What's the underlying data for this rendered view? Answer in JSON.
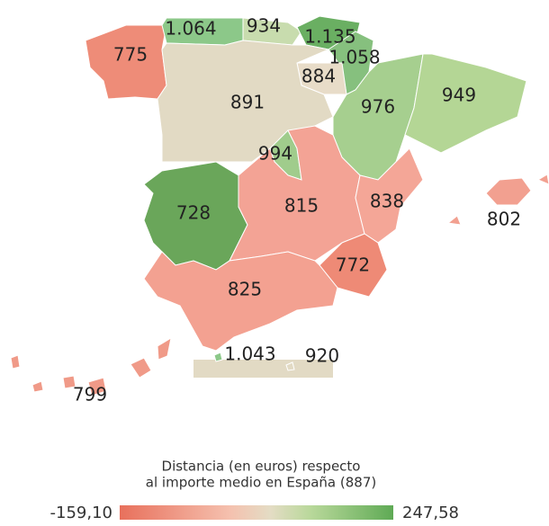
{
  "regions": [
    {
      "label": "775",
      "color": "#ee8c78"
    },
    {
      "label": "1.064",
      "color": "#8cc889"
    },
    {
      "label": "934",
      "color": "#c8dcae"
    },
    {
      "label": "1.135",
      "color": "#6aaf62"
    },
    {
      "label": "1.058",
      "color": "#86c07e"
    },
    {
      "label": "884",
      "color": "#e8dcc8"
    },
    {
      "label": "891",
      "color": "#e2dac4"
    },
    {
      "label": "976",
      "color": "#a6cf8f"
    },
    {
      "label": "949",
      "color": "#b4d695"
    },
    {
      "label": "994",
      "color": "#a0cc8c"
    },
    {
      "label": "728",
      "color": "#6aa65a"
    },
    {
      "label": "815",
      "color": "#f3a395"
    },
    {
      "label": "838",
      "color": "#f4a697"
    },
    {
      "label": "802",
      "color": "#f2a090"
    },
    {
      "label": "772",
      "color": "#ee8a76"
    },
    {
      "label": "825",
      "color": "#f3a191"
    },
    {
      "label": "1.043",
      "color": "#8cc889"
    },
    {
      "label": "920",
      "color": "#e2dac4"
    },
    {
      "label": "799",
      "color": "#f09a88"
    }
  ],
  "legend": {
    "title": [
      "Distancia (en euros) respecto",
      "al importe medio en España (887)"
    ],
    "min_label": "-159,10",
    "max_label": "247,58"
  }
}
